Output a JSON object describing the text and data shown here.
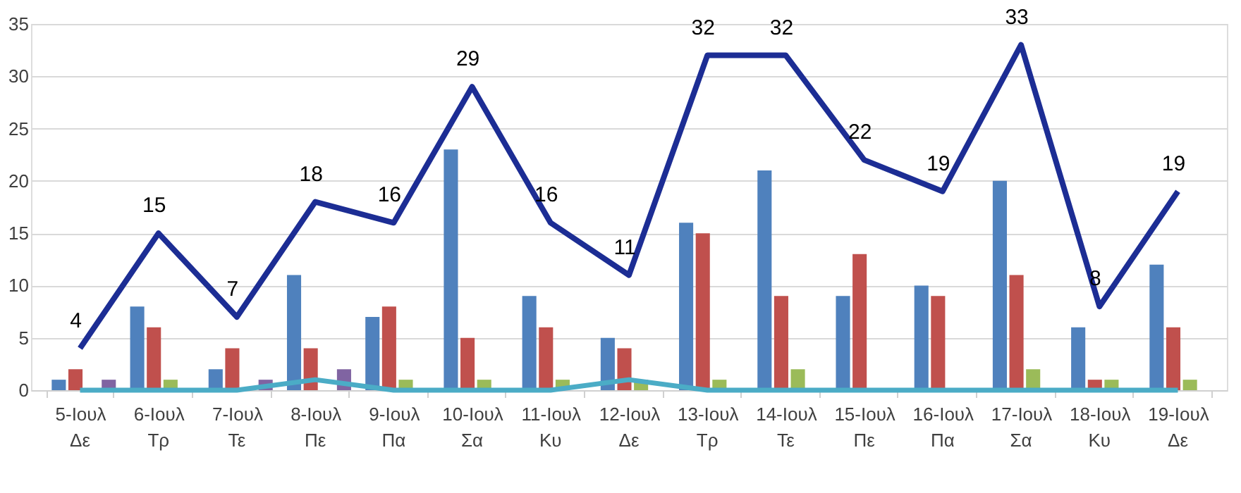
{
  "chart_data": {
    "type": "bar",
    "categories": [
      "5-Ιουλ\nΔε",
      "6-Ιουλ\nΤρ",
      "7-Ιουλ\nΤε",
      "8-Ιουλ\nΠε",
      "9-Ιουλ\nΠα",
      "10-Ιουλ\nΣα",
      "11-Ιουλ\nΚυ",
      "12-Ιουλ\nΔε",
      "13-Ιουλ\nΤρ",
      "14-Ιουλ\nΤε",
      "15-Ιουλ\nΠε",
      "16-Ιουλ\nΠα",
      "17-Ιουλ\nΣα",
      "18-Ιουλ\nΚυ",
      "19-Ιουλ\nΔε"
    ],
    "series": [
      {
        "type": "bar",
        "color": "#4f81bd",
        "values": [
          1,
          8,
          2,
          11,
          7,
          23,
          9,
          5,
          16,
          21,
          9,
          10,
          20,
          6,
          12
        ]
      },
      {
        "type": "bar",
        "color": "#c0504d",
        "values": [
          2,
          6,
          4,
          4,
          8,
          5,
          6,
          4,
          15,
          9,
          13,
          9,
          11,
          1,
          6
        ]
      },
      {
        "type": "bar",
        "color": "#9bbb59",
        "values": [
          0,
          1,
          0,
          0,
          1,
          1,
          1,
          1,
          1,
          2,
          0,
          0,
          2,
          1,
          1
        ]
      },
      {
        "type": "bar",
        "color": "#8064a2",
        "values": [
          1,
          0,
          1,
          2,
          0,
          0,
          0,
          0,
          0,
          0,
          0,
          0,
          0,
          0,
          0
        ]
      },
      {
        "type": "line",
        "color": "#4bacc6",
        "values": [
          0,
          0,
          0,
          1,
          0,
          0,
          0,
          1,
          0,
          0,
          0,
          0,
          0,
          0,
          0
        ]
      },
      {
        "type": "line",
        "color": "#1c2d94",
        "values": [
          4,
          15,
          7,
          18,
          16,
          29,
          16,
          11,
          32,
          32,
          22,
          19,
          33,
          8,
          19
        ],
        "value_labels": [
          "4",
          "15",
          "7",
          "18",
          "16",
          "29",
          "16",
          "11",
          "32",
          "32",
          "22",
          "19",
          "33",
          "8",
          "19"
        ]
      }
    ],
    "ylim": [
      0,
      35
    ],
    "yticks": [
      0,
      5,
      10,
      15,
      20,
      25,
      30,
      35
    ],
    "grid": "y",
    "legend": false
  }
}
